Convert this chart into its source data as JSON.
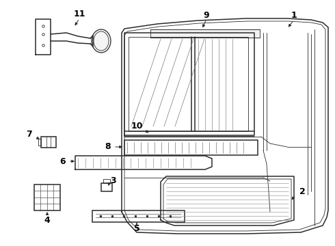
{
  "bg_color": "#ffffff",
  "line_color": "#2a2a2a",
  "label_color": "#000000",
  "lw_main": 1.1,
  "lw_thin": 0.6,
  "lw_detail": 0.4,
  "figsize": [
    4.9,
    3.6
  ],
  "dpi": 100
}
